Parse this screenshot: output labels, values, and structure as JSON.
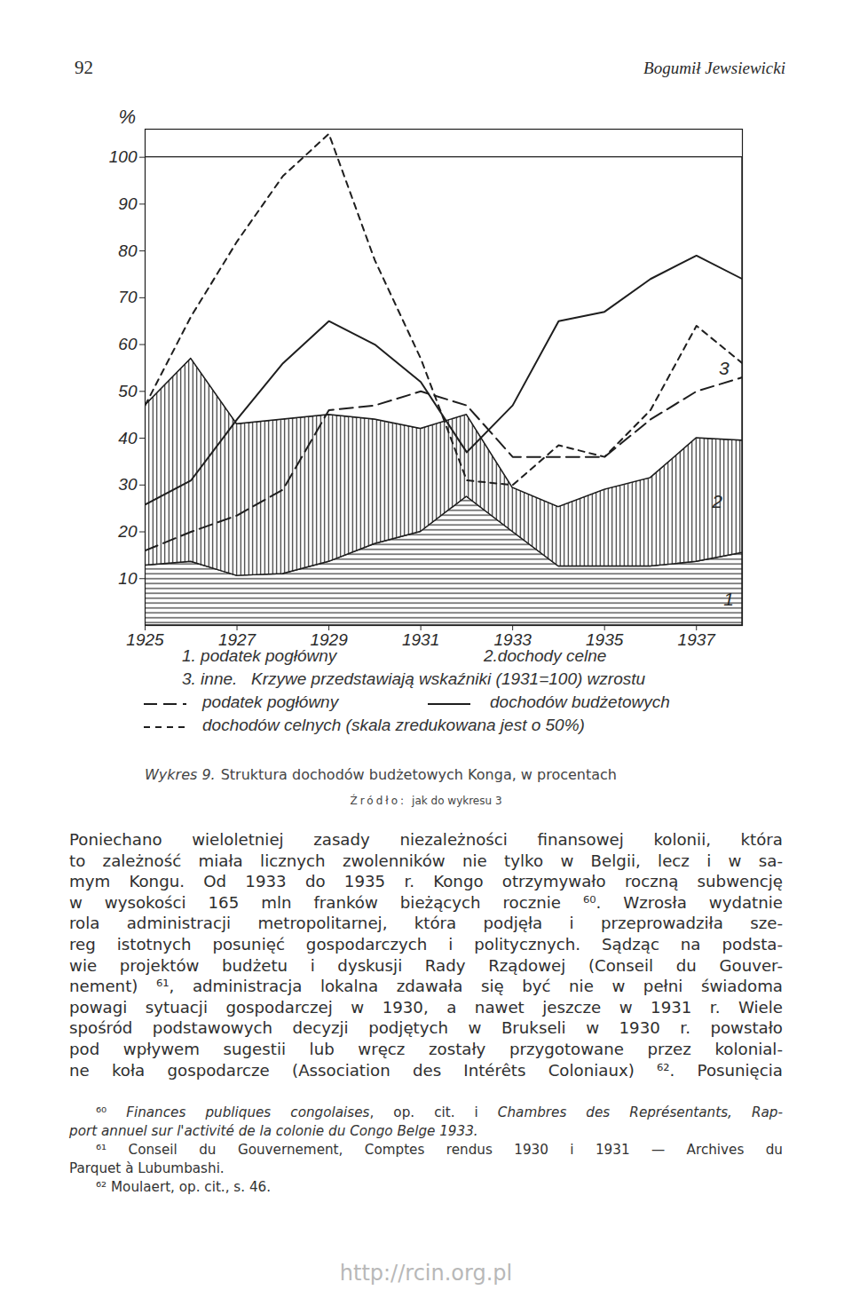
{
  "header": {
    "page_number": "92",
    "author": "Bogumił Jewsiewicki"
  },
  "chart_data": {
    "type": "area",
    "stacked": true,
    "x": [
      1925,
      1926,
      1927,
      1928,
      1929,
      1930,
      1931,
      1932,
      1933,
      1934,
      1935,
      1936,
      1937,
      1938
    ],
    "xlim": [
      1925,
      1938
    ],
    "xticks": [
      1925,
      1927,
      1929,
      1931,
      1933,
      1935,
      1937
    ],
    "ylim": [
      0,
      106
    ],
    "yticks": [
      10,
      20,
      30,
      40,
      50,
      60,
      70,
      80,
      90,
      100
    ],
    "y_label": "%",
    "legend_note": "Krzywe przedstawiają wskaźniki (1931=100) wzrostu",
    "series": [
      {
        "name": "1. podatek pogłówny",
        "type": "area",
        "color": "#1e1e1e",
        "values": [
          12.8,
          13.6,
          10.6,
          11,
          13.6,
          17.4,
          20,
          27.5,
          20,
          12.6,
          12.6,
          12.6,
          13.6,
          15.5
        ]
      },
      {
        "name": "2.dochody celne",
        "type": "area",
        "color": "#1e1e1e",
        "values": [
          34.2,
          43.4,
          32.4,
          33,
          31.4,
          26.6,
          22,
          17.5,
          9.4,
          12.7,
          16.4,
          18.9,
          26.4,
          24
        ]
      },
      {
        "name": "3. inne.",
        "type": "area",
        "color": "#ffffff",
        "values": [
          53,
          43,
          57,
          56,
          55,
          56,
          58,
          55,
          70.6,
          74.7,
          71,
          68.5,
          60,
          60.5
        ]
      },
      {
        "name": "podatek pogłówny",
        "type": "line",
        "color": "#1e1e1e",
        "line_style": "longdash",
        "values": [
          16,
          20,
          23.5,
          29,
          46,
          47,
          50,
          47,
          36,
          36,
          36,
          44,
          50,
          53
        ]
      },
      {
        "name": "dochodów budżetowych",
        "type": "line",
        "color": "#1e1e1e",
        "line_style": "solid",
        "values": [
          25.8,
          31,
          44,
          56,
          65,
          60,
          52,
          37,
          47,
          65,
          67,
          74,
          79,
          74
        ]
      },
      {
        "name": "dochodów celnych (skala zredukowana jest o 50%)",
        "type": "line",
        "color": "#1e1e1e",
        "line_style": "dashed",
        "values": [
          47,
          66,
          82,
          96,
          105,
          78,
          57,
          31,
          30,
          38.5,
          36,
          46,
          64,
          56
        ]
      }
    ],
    "annotations": [
      {
        "text": "1",
        "x": 1937.7,
        "y": 5.5
      },
      {
        "text": "2",
        "x": 1937.45,
        "y": 26.4
      },
      {
        "text": "3",
        "x": 1937.6,
        "y": 54.8
      }
    ]
  },
  "caption": {
    "label": "Wykres 9.",
    "text": "Struktura dochodów budżetowych Konga, w procentach"
  },
  "source": {
    "label": "Źródło:",
    "text": "jak do wykresu 3"
  },
  "body_lines": [
    "Poniechano wieloletniej zasady niezależności finansowej kolonii, która",
    "to zależność miała licznych zwolenników nie tylko w Belgii, lecz i w sa-",
    "mym Kongu. Od 1933 do 1935 r. Kongo otrzymywało roczną subwencję",
    "w wysokości 165 mln franków bieżących rocznie ⁶⁰. Wzrosła wydatnie",
    "rola administracji metropolitarnej, która podjęła i przeprowadziła sze-",
    "reg istotnych posunięć gospodarczych i politycznych. Sądząc na podsta-",
    "wie projektów budżetu i dyskusji Rady Rządowej (Conseil du Gouver-",
    "nement) ⁶¹, administracja lokalna zdawała się być nie w pełni świadoma",
    "powagi sytuacji gospodarczej w 1930, a nawet jeszcze w 1931 r. Wiele",
    "spośród podstawowych decyzji podjętych w Brukseli w 1930 r. powstało",
    "pod wpływem sugestii lub wręcz zostały przygotowane przez kolonial-",
    "ne koła gospodarcze (Association des Intérêts Coloniaux) ⁶². Posunięcia"
  ],
  "footnotes": [
    [
      [
        {
          "text": "⁶⁰ "
        },
        {
          "text": "Finances publiques congolaises",
          "italic": true
        },
        {
          "text": ", op. cit. i "
        },
        {
          "text": "Chambres des Représentants, Rap-",
          "italic": true
        }
      ],
      [
        {
          "text": "port annuel sur l'activité de la colonie du Congo Belge 1933.",
          "italic": true
        }
      ]
    ],
    [
      [
        {
          "text": "⁶¹ Conseil du Gouvernement, Comptes rendus 1930 i 1931 — Archives du"
        }
      ],
      [
        {
          "text": "Parquet à Lubumbashi."
        }
      ]
    ],
    [
      [
        {
          "text": "⁶² Moulaert, op. cit., s. 46."
        }
      ]
    ]
  ],
  "footer": "http://rcin.org.pl"
}
